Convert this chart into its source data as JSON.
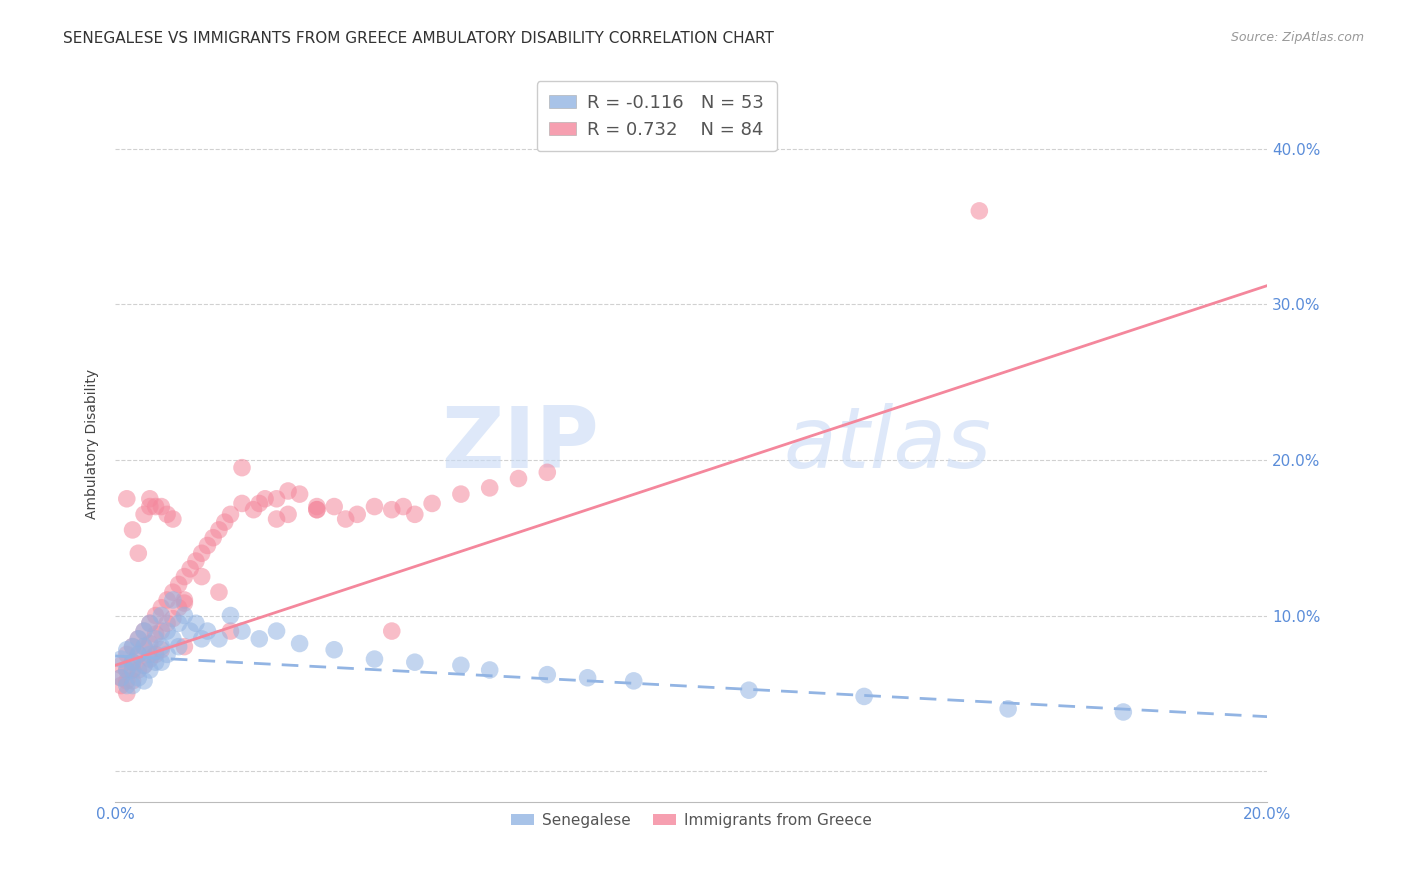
{
  "title": "SENEGALESE VS IMMIGRANTS FROM GREECE AMBULATORY DISABILITY CORRELATION CHART",
  "source": "Source: ZipAtlas.com",
  "ylabel": "Ambulatory Disability",
  "xlim": [
    0.0,
    0.2
  ],
  "ylim": [
    -0.02,
    0.44
  ],
  "yticks": [
    0.0,
    0.1,
    0.2,
    0.3,
    0.4
  ],
  "xticks": [
    0.0,
    0.05,
    0.1,
    0.15,
    0.2
  ],
  "xtick_labels": [
    "0.0%",
    "",
    "",
    "",
    "20.0%"
  ],
  "ytick_labels_right": [
    "",
    "10.0%",
    "20.0%",
    "30.0%",
    "40.0%"
  ],
  "legend_label1": "Senegalese",
  "legend_label2": "Immigrants from Greece",
  "R1": -0.116,
  "N1": 53,
  "R2": 0.732,
  "N2": 84,
  "color_blue": "#92b4e3",
  "color_pink": "#f4879c",
  "background_color": "#ffffff",
  "watermark_zip": "ZIP",
  "watermark_atlas": "atlas",
  "title_fontsize": 11,
  "label_fontsize": 10,
  "tick_fontsize": 11,
  "trend_pink_x0": 0.0,
  "trend_pink_y0": 0.068,
  "trend_pink_x1": 0.2,
  "trend_pink_y1": 0.312,
  "trend_blue_x0": 0.0,
  "trend_blue_y0": 0.074,
  "trend_blue_x1": 0.2,
  "trend_blue_y1": 0.035,
  "senegalese_x": [
    0.001,
    0.001,
    0.002,
    0.002,
    0.002,
    0.003,
    0.003,
    0.003,
    0.003,
    0.004,
    0.004,
    0.004,
    0.005,
    0.005,
    0.005,
    0.005,
    0.006,
    0.006,
    0.006,
    0.007,
    0.007,
    0.008,
    0.008,
    0.008,
    0.009,
    0.009,
    0.01,
    0.01,
    0.011,
    0.011,
    0.012,
    0.013,
    0.014,
    0.015,
    0.016,
    0.018,
    0.02,
    0.022,
    0.025,
    0.028,
    0.032,
    0.038,
    0.045,
    0.052,
    0.06,
    0.065,
    0.075,
    0.082,
    0.09,
    0.11,
    0.13,
    0.155,
    0.175
  ],
  "senegalese_y": [
    0.072,
    0.06,
    0.078,
    0.065,
    0.055,
    0.08,
    0.07,
    0.065,
    0.055,
    0.085,
    0.075,
    0.06,
    0.09,
    0.08,
    0.068,
    0.058,
    0.095,
    0.075,
    0.065,
    0.085,
    0.07,
    0.1,
    0.08,
    0.07,
    0.09,
    0.075,
    0.11,
    0.085,
    0.095,
    0.08,
    0.1,
    0.09,
    0.095,
    0.085,
    0.09,
    0.085,
    0.1,
    0.09,
    0.085,
    0.09,
    0.082,
    0.078,
    0.072,
    0.07,
    0.068,
    0.065,
    0.062,
    0.06,
    0.058,
    0.052,
    0.048,
    0.04,
    0.038
  ],
  "greece_x": [
    0.001,
    0.001,
    0.001,
    0.002,
    0.002,
    0.002,
    0.002,
    0.003,
    0.003,
    0.003,
    0.003,
    0.004,
    0.004,
    0.004,
    0.005,
    0.005,
    0.005,
    0.006,
    0.006,
    0.006,
    0.007,
    0.007,
    0.007,
    0.008,
    0.008,
    0.008,
    0.009,
    0.009,
    0.01,
    0.01,
    0.011,
    0.011,
    0.012,
    0.012,
    0.013,
    0.014,
    0.015,
    0.016,
    0.017,
    0.018,
    0.019,
    0.02,
    0.022,
    0.024,
    0.026,
    0.028,
    0.03,
    0.032,
    0.035,
    0.038,
    0.04,
    0.042,
    0.045,
    0.048,
    0.05,
    0.052,
    0.055,
    0.06,
    0.065,
    0.07,
    0.075,
    0.022,
    0.025,
    0.03,
    0.035,
    0.028,
    0.048,
    0.018,
    0.015,
    0.012,
    0.008,
    0.006,
    0.01,
    0.005,
    0.007,
    0.009,
    0.003,
    0.004,
    0.006,
    0.002,
    0.15,
    0.012,
    0.02,
    0.035
  ],
  "greece_y": [
    0.068,
    0.06,
    0.055,
    0.075,
    0.065,
    0.058,
    0.05,
    0.08,
    0.07,
    0.065,
    0.058,
    0.085,
    0.075,
    0.065,
    0.09,
    0.08,
    0.068,
    0.095,
    0.082,
    0.072,
    0.1,
    0.088,
    0.075,
    0.105,
    0.09,
    0.078,
    0.11,
    0.095,
    0.115,
    0.098,
    0.12,
    0.105,
    0.125,
    0.108,
    0.13,
    0.135,
    0.14,
    0.145,
    0.15,
    0.155,
    0.16,
    0.165,
    0.172,
    0.168,
    0.175,
    0.175,
    0.18,
    0.178,
    0.17,
    0.17,
    0.162,
    0.165,
    0.17,
    0.168,
    0.17,
    0.165,
    0.172,
    0.178,
    0.182,
    0.188,
    0.192,
    0.195,
    0.172,
    0.165,
    0.168,
    0.162,
    0.09,
    0.115,
    0.125,
    0.11,
    0.17,
    0.175,
    0.162,
    0.165,
    0.17,
    0.165,
    0.155,
    0.14,
    0.17,
    0.175,
    0.36,
    0.08,
    0.09,
    0.168
  ]
}
